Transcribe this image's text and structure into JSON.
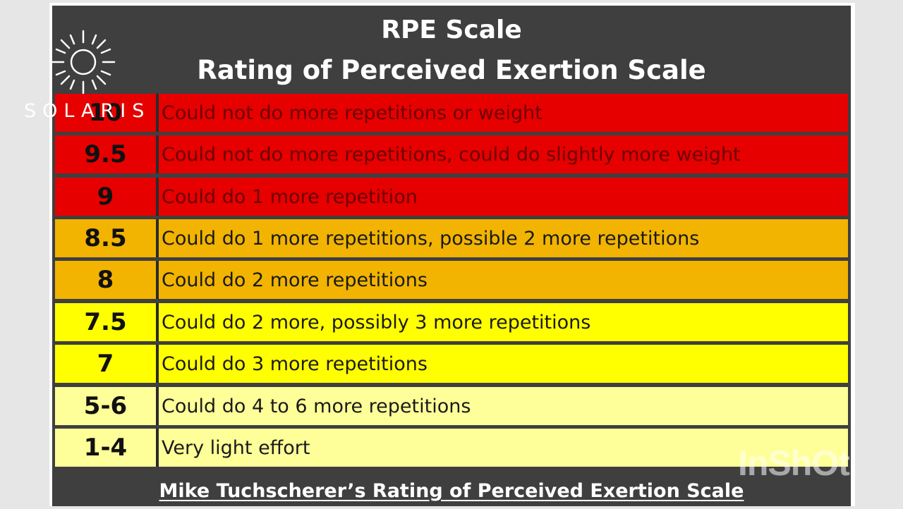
{
  "title": {
    "line1": "RPE Scale",
    "line2": "Rating of Perceived Exertion Scale"
  },
  "rows": [
    {
      "rating": "10",
      "description": "Could not do more repetitions or weight",
      "color": "#e60000"
    },
    {
      "rating": "9.5",
      "description": "Could not do more repetitions, could do slightly more weight",
      "color": "#e60000"
    },
    {
      "rating": "9",
      "description": "Could do 1 more repetition",
      "color": "#e60000"
    },
    {
      "rating": "8.5",
      "description": "Could do 1 more repetitions, possible 2 more repetitions",
      "color": "#f2b400"
    },
    {
      "rating": "8",
      "description": "Could do 2 more repetitions",
      "color": "#f2b400"
    },
    {
      "rating": "7.5",
      "description": "Could do 2 more, possibly 3 more repetitions",
      "color": "#ffff00"
    },
    {
      "rating": "7",
      "description": "Could do 3 more repetitions",
      "color": "#ffff00"
    },
    {
      "rating": "5-6",
      "description": "Could do 4 to 6 more repetitions",
      "color": "#ffff99"
    },
    {
      "rating": "1-4",
      "description": "Very light effort",
      "color": "#ffff99"
    }
  ],
  "footer": "Mike Tuchscherer’s Rating of Perceived Exertion Scale",
  "logo": {
    "text": "SOLARIS",
    "icon": "sun-icon"
  },
  "watermark": "InShOt",
  "colors": {
    "header_bg": "#3f3f3f",
    "frame": "#ffffff",
    "page_bg": "#e6e6e6"
  }
}
